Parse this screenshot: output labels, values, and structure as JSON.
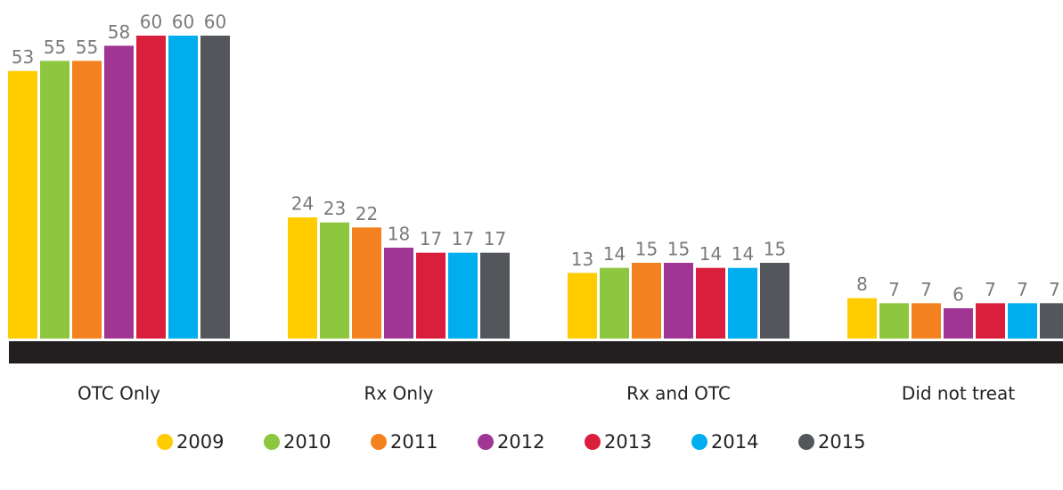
{
  "chart_data": {
    "type": "bar",
    "categories": [
      "OTC Only",
      "Rx Only",
      "Rx and OTC",
      "Did not treat"
    ],
    "series": [
      {
        "name": "2009",
        "color": "#FFCC00",
        "values": [
          53,
          24,
          13,
          8
        ]
      },
      {
        "name": "2010",
        "color": "#8DC63F",
        "values": [
          55,
          23,
          14,
          7
        ]
      },
      {
        "name": "2011",
        "color": "#F58220",
        "values": [
          55,
          22,
          15,
          7
        ]
      },
      {
        "name": "2012",
        "color": "#A03594",
        "values": [
          58,
          18,
          15,
          6
        ]
      },
      {
        "name": "2013",
        "color": "#D91F3C",
        "values": [
          60,
          17,
          14,
          7
        ]
      },
      {
        "name": "2014",
        "color": "#00AEEF",
        "values": [
          60,
          17,
          14,
          7
        ]
      },
      {
        "name": "2015",
        "color": "#53565B",
        "values": [
          60,
          17,
          15,
          7
        ]
      }
    ],
    "ylim": [
      0,
      60
    ],
    "legend": "bottom"
  }
}
